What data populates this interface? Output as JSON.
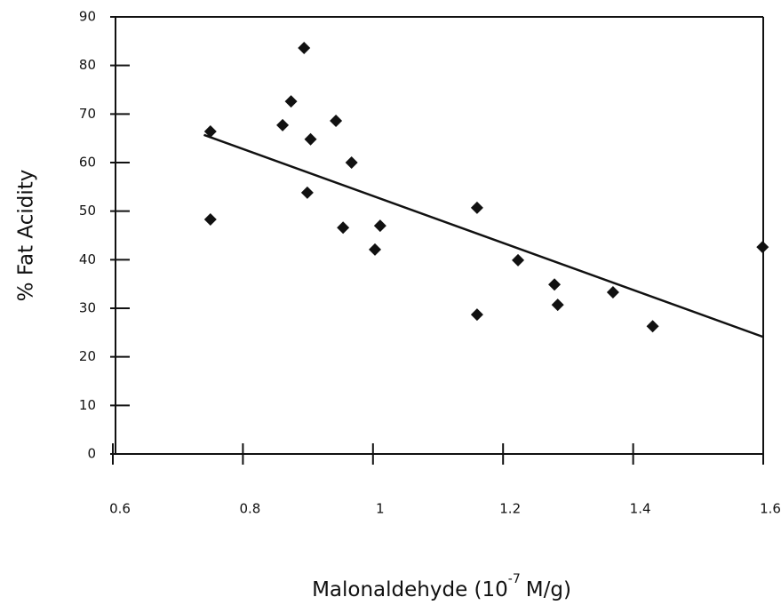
{
  "chart_data": {
    "type": "scatter",
    "x_label": [
      "Malonaldehyde (10",
      "-7",
      "M/g)"
    ],
    "y_label": "% Fat  Acidity",
    "x": [
      0.75,
      0.75,
      0.861,
      0.874,
      0.894,
      0.899,
      0.904,
      0.943,
      0.954,
      0.967,
      1.003,
      1.011,
      1.16,
      1.16,
      1.223,
      1.279,
      1.284,
      1.369,
      1.43,
      1.599
    ],
    "values": [
      66.4,
      48.3,
      67.7,
      72.6,
      83.6,
      53.8,
      64.8,
      68.6,
      46.6,
      60.0,
      42.1,
      47.0,
      50.7,
      28.7,
      39.9,
      34.9,
      30.7,
      33.3,
      26.3,
      42.6
    ],
    "color": "#111111",
    "fit_line": {
      "x": [
        0.74,
        1.6
      ],
      "y": [
        65.7,
        24.1
      ]
    },
    "xlim": [
      0.6,
      1.6
    ],
    "xticks": [
      0.6,
      0.8,
      1,
      1.2,
      1.4,
      1.6
    ],
    "ylim": [
      0,
      90
    ],
    "yticks": [
      0,
      10,
      20,
      30,
      40,
      50,
      60,
      70,
      80,
      90
    ]
  }
}
